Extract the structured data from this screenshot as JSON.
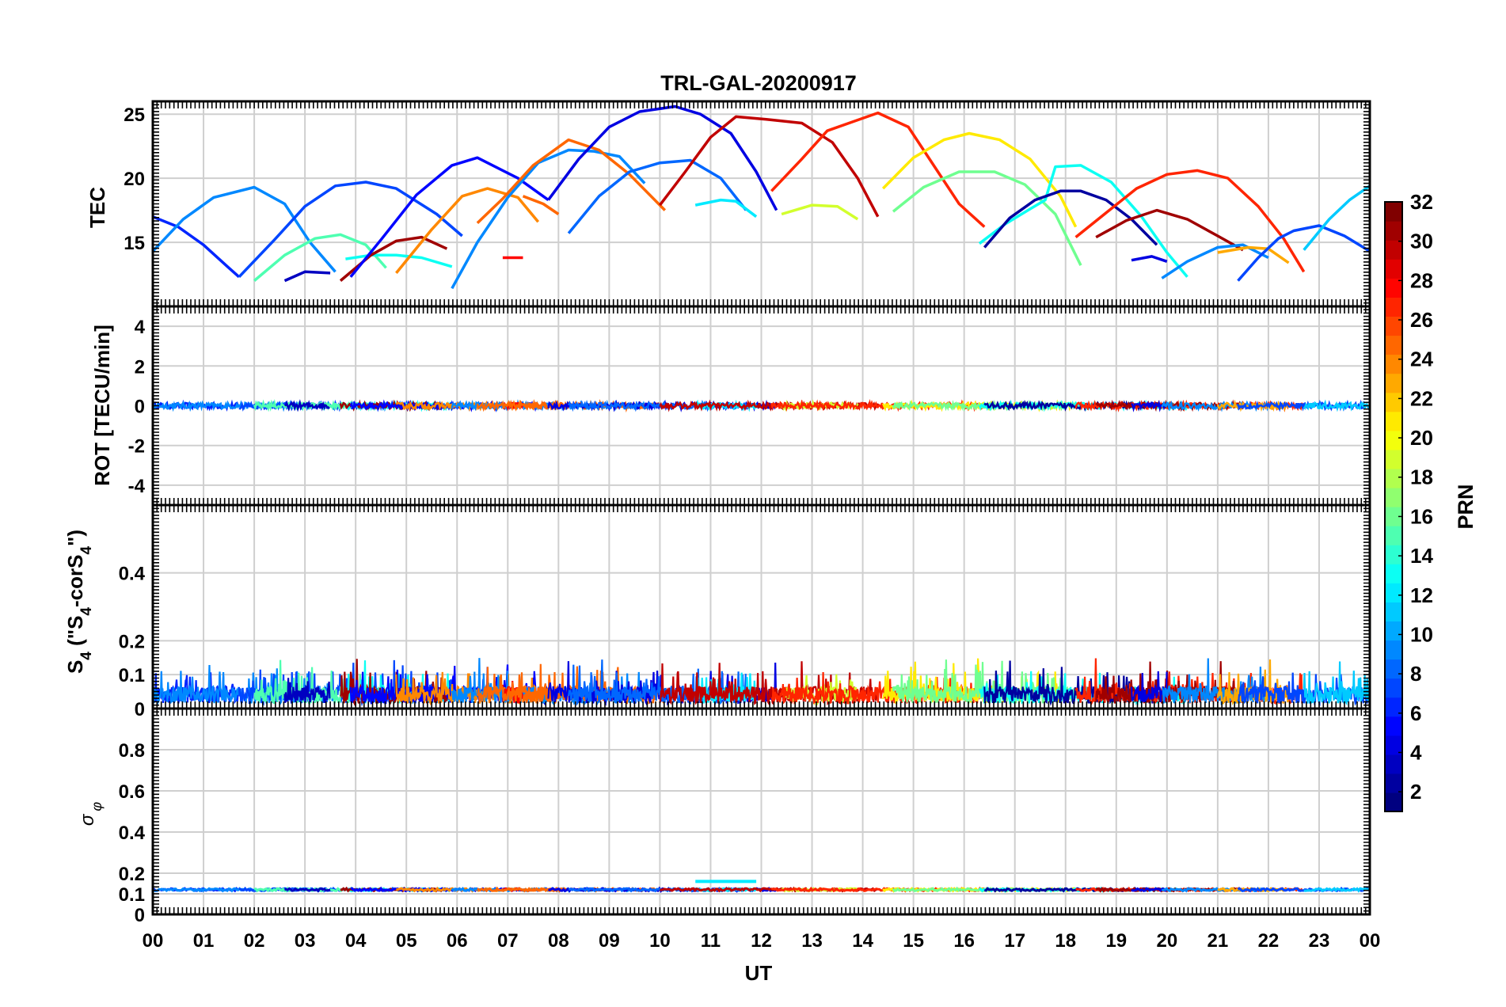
{
  "figure": {
    "title": "TRL-GAL-20200917",
    "xlabel": "UT",
    "x_tick_labels": [
      "00",
      "01",
      "02",
      "03",
      "04",
      "05",
      "06",
      "07",
      "08",
      "09",
      "10",
      "11",
      "12",
      "13",
      "14",
      "15",
      "16",
      "17",
      "18",
      "19",
      "20",
      "21",
      "22",
      "23",
      "00"
    ]
  },
  "colorbar": {
    "label": "PRN",
    "range": [
      1,
      32
    ],
    "tick_labels": [
      "2",
      "4",
      "6",
      "8",
      "10",
      "12",
      "14",
      "16",
      "18",
      "20",
      "22",
      "24",
      "26",
      "28",
      "30",
      "32"
    ],
    "colormap": "jet"
  },
  "chart_data": [
    {
      "type": "line",
      "panel": "tec",
      "ylabel": "TEC",
      "xlim": [
        0,
        24
      ],
      "ylim": [
        10,
        26
      ],
      "y_ticks": [
        15,
        20,
        25
      ],
      "y_tick_labels": [
        "15",
        "20",
        "25"
      ],
      "grid": true,
      "series": [
        {
          "prn": 6,
          "x": [
            0.0,
            0.5,
            1.0,
            1.5,
            1.7
          ],
          "y": [
            17.0,
            16.2,
            14.8,
            13.0,
            12.3
          ]
        },
        {
          "prn": 9,
          "x": [
            0.0,
            0.6,
            1.2,
            2.0,
            2.6,
            3.1,
            3.6
          ],
          "y": [
            14.3,
            16.8,
            18.5,
            19.3,
            18.0,
            15.0,
            12.7
          ]
        },
        {
          "prn": 7,
          "x": [
            1.7,
            2.4,
            3.0,
            3.6,
            4.2,
            4.8,
            5.6,
            6.1
          ],
          "y": [
            12.3,
            15.2,
            17.8,
            19.4,
            19.7,
            19.2,
            17.2,
            15.5
          ]
        },
        {
          "prn": 15,
          "x": [
            2.0,
            2.6,
            3.2,
            3.7,
            4.2,
            4.6
          ],
          "y": [
            12.0,
            14.0,
            15.3,
            15.6,
            14.8,
            13.0
          ]
        },
        {
          "prn": 3,
          "x": [
            2.6,
            3.0,
            3.5
          ],
          "y": [
            12.0,
            12.7,
            12.6
          ]
        },
        {
          "prn": 13,
          "x": [
            3.8,
            4.3,
            4.8,
            5.3,
            5.9
          ],
          "y": [
            13.7,
            14.0,
            14.0,
            13.8,
            13.1
          ]
        },
        {
          "prn": 31,
          "x": [
            3.7,
            4.3,
            4.8,
            5.3,
            5.8
          ],
          "y": [
            12.0,
            14.0,
            15.1,
            15.4,
            14.5
          ]
        },
        {
          "prn": 5,
          "x": [
            3.9,
            4.5,
            5.2,
            5.9,
            6.4,
            7.2,
            7.8
          ],
          "y": [
            12.3,
            15.2,
            18.7,
            21.0,
            21.6,
            20.0,
            18.3
          ]
        },
        {
          "prn": 24,
          "x": [
            4.8,
            5.5,
            6.1,
            6.6,
            7.2,
            7.6
          ],
          "y": [
            12.6,
            16.0,
            18.6,
            19.2,
            18.5,
            16.6
          ]
        },
        {
          "prn": 9,
          "x": [
            5.9,
            6.4,
            7.0,
            7.6,
            8.2,
            8.7,
            9.2,
            9.7
          ],
          "y": [
            11.4,
            15.0,
            18.5,
            21.2,
            22.2,
            22.1,
            21.7,
            19.6
          ]
        },
        {
          "prn": 28,
          "x": [
            6.9,
            7.3
          ],
          "y": [
            13.8,
            13.8
          ]
        },
        {
          "prn": 25,
          "x": [
            6.4,
            6.9,
            7.5,
            8.2,
            8.8,
            9.4,
            10.1
          ],
          "y": [
            16.5,
            18.4,
            21.0,
            23.0,
            22.2,
            20.3,
            17.5
          ]
        },
        {
          "prn": 25,
          "x": [
            7.3,
            7.7,
            8.0
          ],
          "y": [
            18.6,
            18.0,
            17.2
          ]
        },
        {
          "prn": 4,
          "x": [
            7.8,
            8.4,
            9.0,
            9.6,
            10.3,
            10.8,
            11.4,
            11.9,
            12.3
          ],
          "y": [
            18.3,
            21.5,
            24.0,
            25.2,
            25.6,
            25.0,
            23.5,
            20.5,
            17.5
          ]
        },
        {
          "prn": 8,
          "x": [
            8.2,
            8.8,
            9.4,
            10.0,
            10.6,
            11.2,
            11.7
          ],
          "y": [
            15.7,
            18.6,
            20.5,
            21.2,
            21.4,
            20.0,
            17.5
          ]
        },
        {
          "prn": 12,
          "x": [
            10.7,
            11.2,
            11.5,
            11.9
          ],
          "y": [
            17.9,
            18.3,
            18.2,
            17.0
          ]
        },
        {
          "prn": 30,
          "x": [
            10.0,
            10.5,
            11.0,
            11.5,
            12.1,
            12.8,
            13.4,
            13.9,
            14.3
          ],
          "y": [
            17.9,
            20.5,
            23.2,
            24.8,
            24.6,
            24.3,
            22.8,
            20.0,
            17.0
          ]
        },
        {
          "prn": 19,
          "x": [
            12.4,
            13.0,
            13.5,
            13.9
          ],
          "y": [
            17.2,
            17.9,
            17.8,
            16.8
          ]
        },
        {
          "prn": 27,
          "x": [
            12.2,
            12.8,
            13.3,
            13.8,
            14.3,
            14.9,
            15.4,
            15.9,
            16.4
          ],
          "y": [
            19.0,
            21.5,
            23.7,
            24.4,
            25.1,
            24.0,
            21.0,
            18.0,
            16.2
          ]
        },
        {
          "prn": 21,
          "x": [
            14.4,
            15.0,
            15.6,
            16.1,
            16.7,
            17.3,
            17.9,
            18.2
          ],
          "y": [
            19.2,
            21.6,
            23.0,
            23.5,
            23.0,
            21.5,
            18.6,
            16.2
          ]
        },
        {
          "prn": 16,
          "x": [
            14.6,
            15.2,
            15.9,
            16.6,
            17.2,
            17.8,
            18.3
          ],
          "y": [
            17.4,
            19.3,
            20.5,
            20.5,
            19.5,
            17.2,
            13.2
          ]
        },
        {
          "prn": 13,
          "x": [
            16.3,
            16.8,
            17.3,
            17.6,
            17.8,
            18.3,
            18.9,
            19.5,
            20.0,
            20.4
          ],
          "y": [
            14.9,
            16.4,
            17.6,
            18.3,
            20.9,
            21.0,
            19.7,
            17.0,
            14.2,
            12.3
          ]
        },
        {
          "prn": 2,
          "x": [
            16.4,
            16.9,
            17.4,
            17.9,
            18.3,
            18.8,
            19.3,
            19.8
          ],
          "y": [
            14.6,
            16.9,
            18.3,
            19.0,
            19.0,
            18.3,
            16.8,
            14.8
          ]
        },
        {
          "prn": 27,
          "x": [
            18.2,
            18.8,
            19.4,
            20.0,
            20.6,
            21.2,
            21.8,
            22.3,
            22.7
          ],
          "y": [
            15.4,
            17.3,
            19.2,
            20.3,
            20.6,
            20.0,
            17.8,
            15.3,
            12.7
          ]
        },
        {
          "prn": 31,
          "x": [
            18.6,
            19.2,
            19.8,
            20.4,
            21.0,
            21.5
          ],
          "y": [
            15.4,
            16.7,
            17.5,
            16.8,
            15.5,
            14.4
          ]
        },
        {
          "prn": 4,
          "x": [
            19.3,
            19.7,
            20.0
          ],
          "y": [
            13.6,
            13.9,
            13.5
          ]
        },
        {
          "prn": 9,
          "x": [
            19.9,
            20.4,
            21.0,
            21.5,
            22.0
          ],
          "y": [
            12.2,
            13.5,
            14.6,
            14.8,
            13.8
          ]
        },
        {
          "prn": 23,
          "x": [
            21.0,
            21.6,
            22.0,
            22.4
          ],
          "y": [
            14.2,
            14.6,
            14.5,
            13.4
          ]
        },
        {
          "prn": 7,
          "x": [
            21.4,
            21.8,
            22.2,
            22.5,
            23.0,
            23.5,
            24.0
          ],
          "y": [
            12.0,
            13.8,
            15.3,
            15.9,
            16.3,
            15.5,
            14.3
          ]
        },
        {
          "prn": 11,
          "x": [
            22.7,
            23.2,
            23.6,
            24.0
          ],
          "y": [
            14.4,
            16.8,
            18.3,
            19.4
          ]
        }
      ]
    },
    {
      "type": "line",
      "panel": "rot",
      "ylabel": "ROT [TECU/min]",
      "xlim": [
        0,
        24
      ],
      "ylim": [
        -5,
        5
      ],
      "y_ticks": [
        -4,
        -2,
        0,
        2,
        4
      ],
      "y_tick_labels": [
        "-4",
        "-2",
        "0",
        "2",
        "4"
      ],
      "grid": true,
      "description_of_values": "all satellites near 0 TECU/min with fluctuations of about ±0.15",
      "baseline": 0.0,
      "noise_amplitude": 0.15
    },
    {
      "type": "line",
      "panel": "s4",
      "ylabel": "S4 (\"S4-corS4\")",
      "ylabel_parts": {
        "a": "S",
        "b": "4",
        "c": " (\"S",
        "d": "4",
        "e": "-corS",
        "f": "4",
        "g": "\")"
      },
      "xlim": [
        0,
        24
      ],
      "ylim": [
        0,
        0.6
      ],
      "y_ticks": [
        0,
        0.1,
        0.2,
        0.4
      ],
      "y_tick_labels": [
        "0",
        "0.1",
        "0.2",
        "0.4"
      ],
      "grid": true,
      "baseline": 0.04,
      "typical_peak": 0.1,
      "max_peak": 0.15
    },
    {
      "type": "line",
      "panel": "sigma_phi",
      "ylabel": "σ φ",
      "ylabel_parts": {
        "a": "σ",
        "b": "φ"
      },
      "xlim": [
        0,
        24
      ],
      "ylim": [
        0,
        1
      ],
      "y_ticks": [
        0,
        0.1,
        0.2,
        0.4,
        0.6,
        0.8
      ],
      "y_tick_labels": [
        "0",
        "0.1",
        "0.2",
        "0.4",
        "0.6",
        "0.8"
      ],
      "grid": true,
      "baseline": 0.12,
      "highlight_segment": {
        "prn": 12,
        "x": [
          10.7,
          11.9
        ],
        "y": 0.16
      }
    }
  ]
}
